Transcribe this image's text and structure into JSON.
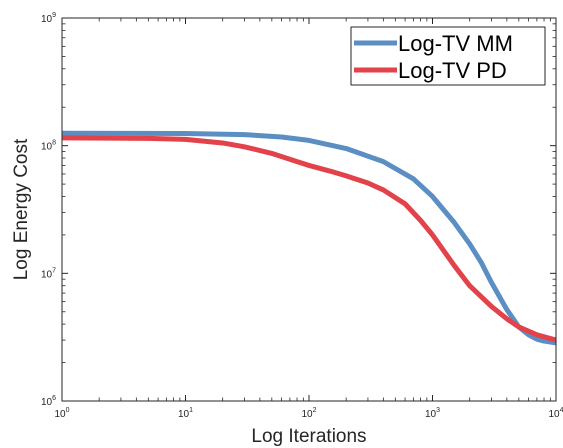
{
  "chart_data": {
    "type": "line",
    "title": "",
    "xlabel": "Log Iterations",
    "ylabel": "Log Energy Cost",
    "xscale": "log",
    "yscale": "log",
    "xlim": [
      1,
      10000
    ],
    "ylim": [
      1000000,
      1000000000
    ],
    "grid": false,
    "legend_position": "top-right",
    "x_ticks": [
      {
        "value": 1,
        "base": "10",
        "exp": "0"
      },
      {
        "value": 10,
        "base": "10",
        "exp": "1"
      },
      {
        "value": 100,
        "base": "10",
        "exp": "2"
      },
      {
        "value": 1000,
        "base": "10",
        "exp": "3"
      },
      {
        "value": 10000,
        "base": "10",
        "exp": "4"
      }
    ],
    "y_ticks": [
      {
        "value": 1000000,
        "base": "10",
        "exp": "6"
      },
      {
        "value": 10000000,
        "base": "10",
        "exp": "7"
      },
      {
        "value": 100000000,
        "base": "10",
        "exp": "8"
      },
      {
        "value": 1000000000,
        "base": "10",
        "exp": "9"
      }
    ],
    "series": [
      {
        "name": "Log-TV MM",
        "color": "#5b8fc4",
        "x": [
          1,
          10,
          30,
          60,
          100,
          200,
          400,
          700,
          1000,
          1500,
          2000,
          2500,
          3000,
          4000,
          5000,
          6000,
          7000,
          8000,
          10000
        ],
        "y": [
          125000000,
          124500000,
          122000000,
          117000000,
          110000000,
          95000000,
          75000000,
          55000000,
          40000000,
          25000000,
          17000000,
          12000000,
          8500000,
          5200000,
          3800000,
          3300000,
          3050000,
          2950000,
          2850000
        ]
      },
      {
        "name": "Log-TV PD",
        "color": "#e2434b",
        "x": [
          1,
          5,
          10,
          20,
          30,
          50,
          80,
          100,
          150,
          200,
          300,
          400,
          600,
          800,
          1000,
          1500,
          2000,
          3000,
          4000,
          5000,
          7000,
          10000
        ],
        "y": [
          115000000,
          114000000,
          112000000,
          105000000,
          98000000,
          87000000,
          75000000,
          70000000,
          63000000,
          58000000,
          51000000,
          45000000,
          35000000,
          26000000,
          20000000,
          11500000,
          8000000,
          5500000,
          4400000,
          3800000,
          3300000,
          3000000
        ]
      }
    ]
  }
}
